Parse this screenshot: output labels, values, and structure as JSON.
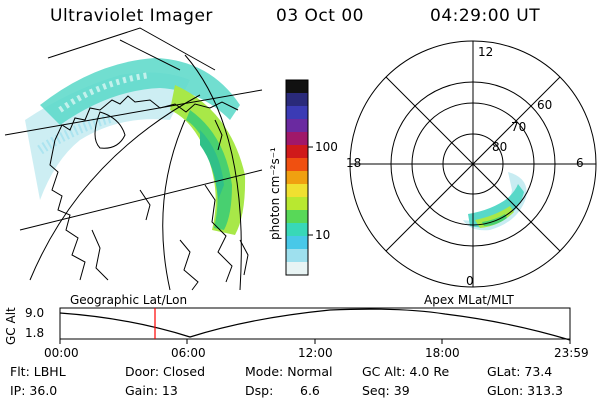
{
  "header": {
    "title": "Ultraviolet Imager",
    "date": "03 Oct 00",
    "time": "04:29:00 UT"
  },
  "colorbar": {
    "label": "photon cm⁻²s⁻¹",
    "ticks": [
      "100",
      "10"
    ],
    "colors": [
      "#111111",
      "#2a2a7a",
      "#3b3bb5",
      "#6a2aa0",
      "#a0186a",
      "#d01a1a",
      "#f05010",
      "#f0a010",
      "#f0e030",
      "#b8e830",
      "#58d858",
      "#38d8b8",
      "#48c8e8",
      "#9ee0ee",
      "#e8f4f4"
    ]
  },
  "polar_plot": {
    "lat_labels": [
      "60",
      "70",
      "80"
    ],
    "mlt_labels": [
      "12",
      "18",
      "6",
      "0"
    ]
  },
  "altitude_plot": {
    "left_label": "Geographic Lat/Lon",
    "right_label": "Apex MLat/MLT",
    "y_axis_label": "GC Alt",
    "y_ticks": [
      "9.0",
      "1.8"
    ],
    "x_ticks": [
      "00:00",
      "06:00",
      "12:00",
      "18:00",
      "23:59"
    ],
    "marker_color": "#ff0000"
  },
  "info": {
    "filter": "Flt: LBHL",
    "ip": "IP: 36.0",
    "door": "Door: Closed",
    "gain": "Gain: 13",
    "mode": "Mode: Normal",
    "dsp_label": "Dsp:",
    "dsp_value": "6.6",
    "gc_alt": "GC Alt: 4.0 Re",
    "seq": "Seq: 39",
    "glat": "GLat: 73.4",
    "glon": "GLon: 313.3"
  }
}
